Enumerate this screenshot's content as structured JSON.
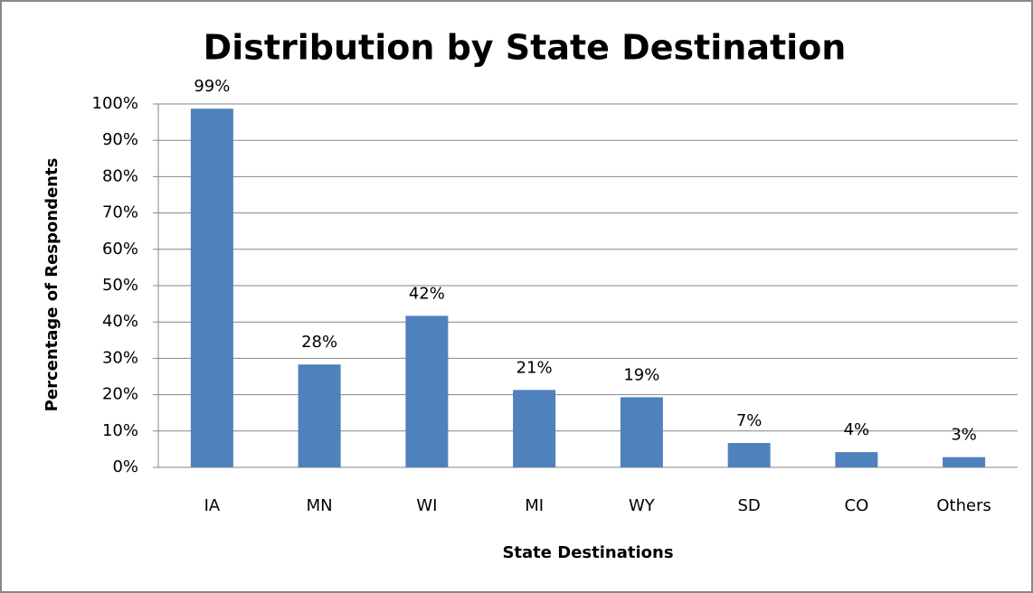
{
  "chart_data": {
    "type": "bar",
    "title": "Distribution by State Destination",
    "x_label": "State Destinations",
    "y_label": "Percentage of Respondents",
    "categories": [
      "IA",
      "MN",
      "WI",
      "MI",
      "WY",
      "SD",
      "CO",
      "Others"
    ],
    "values": [
      98.7,
      28.3,
      41.7,
      21.3,
      19.3,
      6.7,
      4.2,
      2.8
    ],
    "value_labels": [
      "99%",
      "28%",
      "42%",
      "21%",
      "19%",
      "7%",
      "4%",
      "3%"
    ],
    "color": "#4f81bd",
    "ylim": [
      0,
      100
    ],
    "yticks": [
      {
        "value": 0,
        "label": "0%"
      },
      {
        "value": 10,
        "label": "10%"
      },
      {
        "value": 20,
        "label": "20%"
      },
      {
        "value": 30,
        "label": "30%"
      },
      {
        "value": 40,
        "label": "40%"
      },
      {
        "value": 50,
        "label": "50%"
      },
      {
        "value": 60,
        "label": "60%"
      },
      {
        "value": 70,
        "label": "70%"
      },
      {
        "value": 80,
        "label": "80%"
      },
      {
        "value": 90,
        "label": "90%"
      },
      {
        "value": 100,
        "label": "100%"
      }
    ],
    "grid": true
  }
}
